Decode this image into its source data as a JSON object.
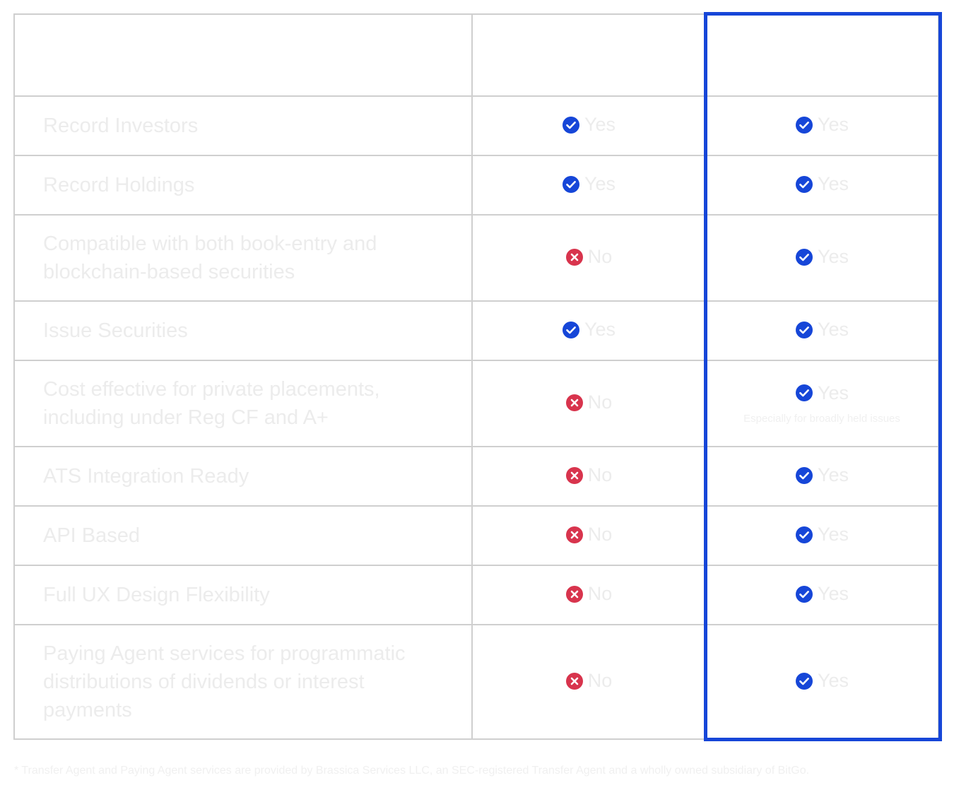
{
  "colors": {
    "accent": "#1646d8",
    "check": "#1646d8",
    "cross": "#d8344d",
    "grid": "#cfcfcf"
  },
  "header": {
    "col1": "",
    "col2": "",
    "col3": ""
  },
  "rows": [
    {
      "feature": "Record Investors",
      "a": {
        "icon": "check-circle-icon",
        "label": "Yes"
      },
      "b": {
        "icon": "check-circle-icon",
        "label": "Yes",
        "note": ""
      }
    },
    {
      "feature": "Record Holdings",
      "a": {
        "icon": "check-circle-icon",
        "label": "Yes"
      },
      "b": {
        "icon": "check-circle-icon",
        "label": "Yes",
        "note": ""
      }
    },
    {
      "feature": "Compatible with both book-entry and blockchain-based securities",
      "a": {
        "icon": "x-circle-icon",
        "label": "No"
      },
      "b": {
        "icon": "check-circle-icon",
        "label": "Yes",
        "note": ""
      }
    },
    {
      "feature": "Issue Securities",
      "a": {
        "icon": "check-circle-icon",
        "label": "Yes"
      },
      "b": {
        "icon": "check-circle-icon",
        "label": "Yes",
        "note": ""
      }
    },
    {
      "feature": "Cost effective for private placements, including under Reg CF and A+",
      "a": {
        "icon": "x-circle-icon",
        "label": "No"
      },
      "b": {
        "icon": "check-circle-icon",
        "label": "Yes",
        "note": "Especially for broadly held issues"
      }
    },
    {
      "feature": "ATS Integration Ready",
      "a": {
        "icon": "x-circle-icon",
        "label": "No"
      },
      "b": {
        "icon": "check-circle-icon",
        "label": "Yes",
        "note": ""
      }
    },
    {
      "feature": "API Based",
      "a": {
        "icon": "x-circle-icon",
        "label": "No"
      },
      "b": {
        "icon": "check-circle-icon",
        "label": "Yes",
        "note": ""
      }
    },
    {
      "feature": "Full UX Design Flexibility",
      "a": {
        "icon": "x-circle-icon",
        "label": "No"
      },
      "b": {
        "icon": "check-circle-icon",
        "label": "Yes",
        "note": ""
      }
    },
    {
      "feature": "Paying Agent services for programmatic distributions of dividends or interest payments",
      "a": {
        "icon": "x-circle-icon",
        "label": "No"
      },
      "b": {
        "icon": "check-circle-icon",
        "label": "Yes",
        "note": ""
      }
    }
  ],
  "footnote": "* Transfer Agent and Paying Agent services are provided by Brassica Services LLC, an SEC-registered Transfer Agent and a wholly owned subsidiary of BitGo."
}
